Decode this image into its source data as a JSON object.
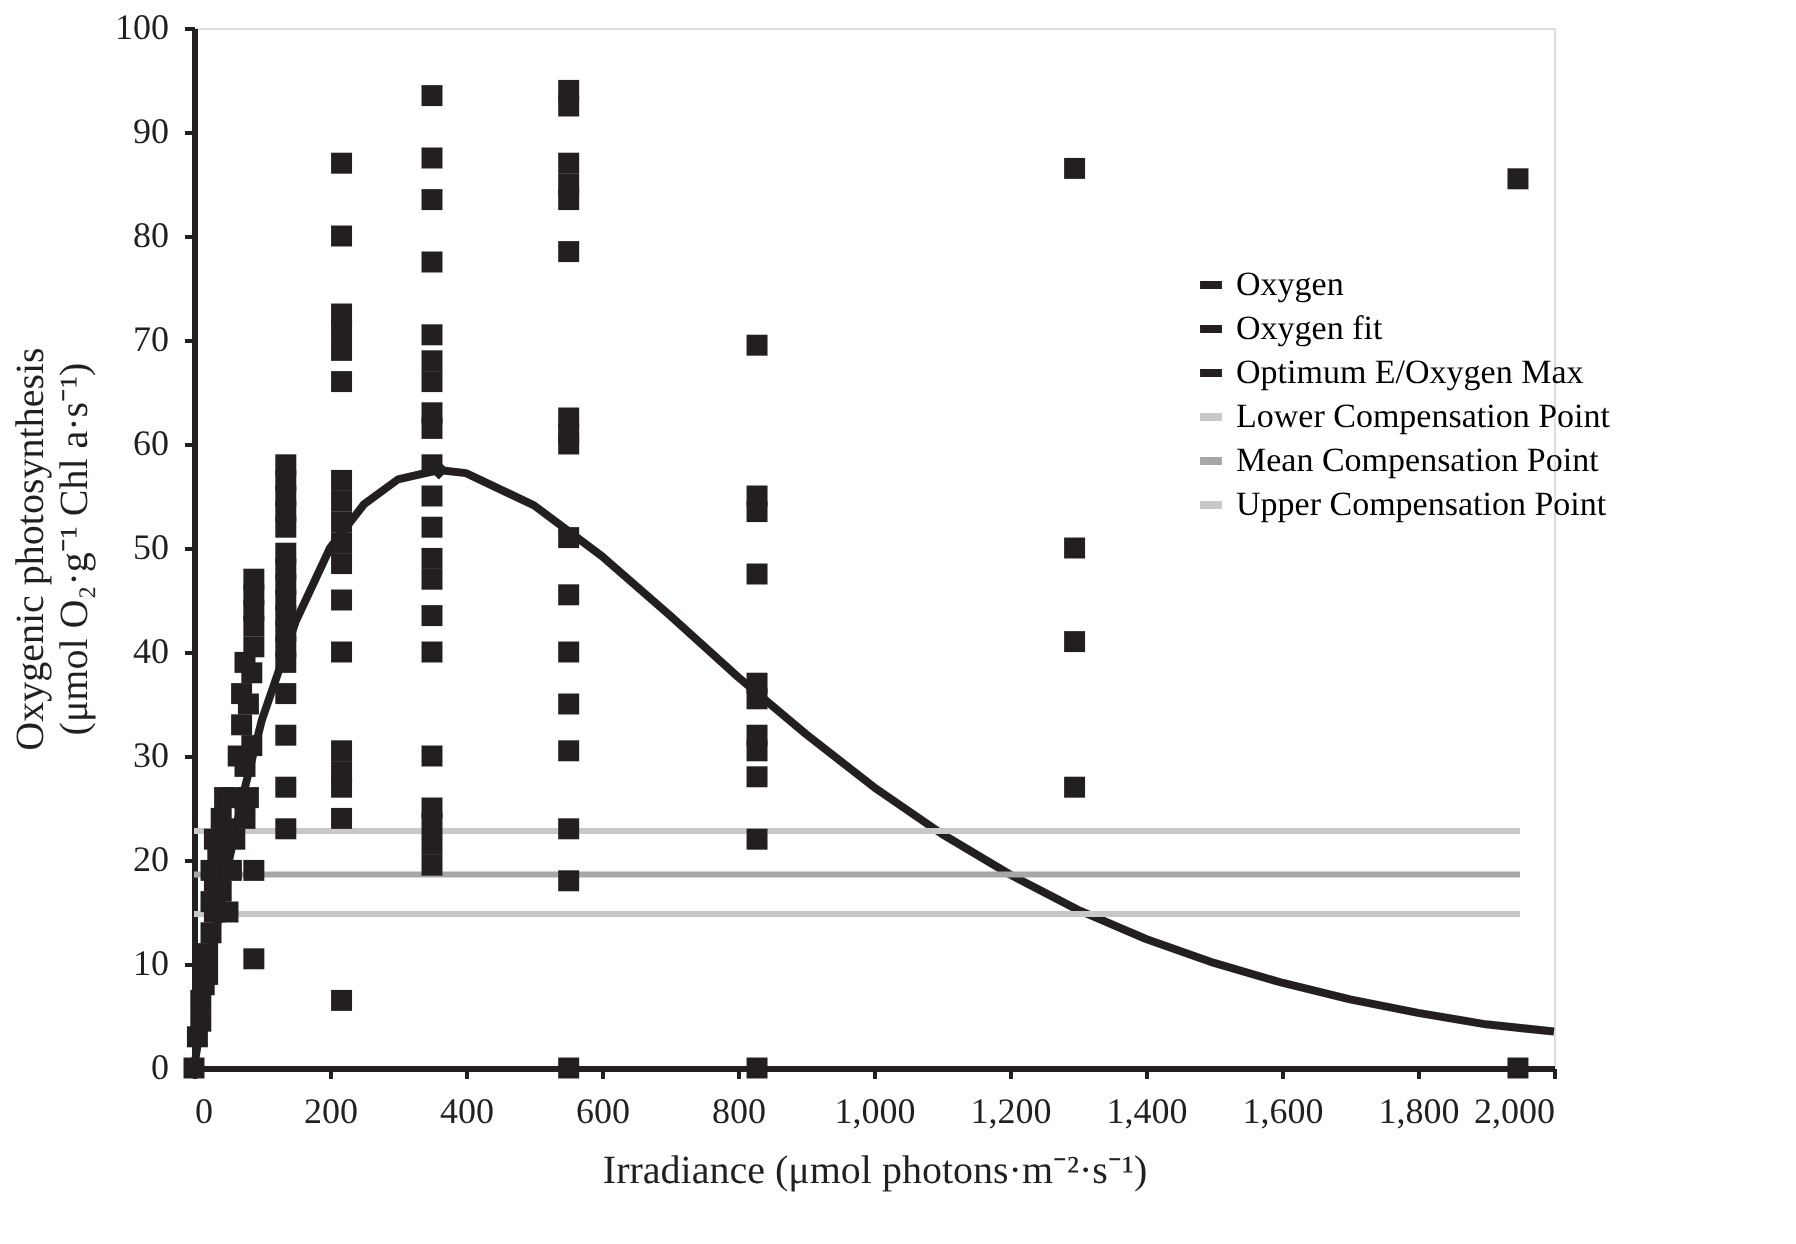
{
  "chart_data": {
    "type": "scatter",
    "xlabel": "Irradiance (μmol photons·m⁻²·s⁻¹)",
    "ylabel": "Oxygenic photosynthesis\n(μmol O₂·g⁻¹ Chl a·s⁻¹)",
    "xlim": [
      0,
      2000
    ],
    "xticks": [
      0,
      200,
      400,
      600,
      800,
      {
        "value": 1000,
        "label": "1,000"
      },
      {
        "value": 1200,
        "label": "1,200"
      },
      {
        "value": 1400,
        "label": "1,400"
      },
      {
        "value": 1600,
        "label": "1,600"
      },
      {
        "value": 1800,
        "label": "1,800"
      },
      {
        "value": 2000,
        "label": "2,000"
      }
    ],
    "ylim": [
      0,
      100
    ],
    "yticks": [
      0,
      10,
      20,
      30,
      40,
      50,
      60,
      70,
      80,
      90,
      100
    ],
    "grid": false,
    "legend": "right",
    "series": [
      {
        "name": "Oxygen",
        "marker": "square",
        "color": "#231f20",
        "x": [
          0,
          5,
          10,
          10,
          15,
          20,
          20,
          25,
          25,
          25,
          30,
          30,
          30,
          35,
          40,
          40,
          45,
          50,
          50,
          55,
          55,
          60,
          65,
          70,
          70,
          75,
          75,
          75,
          80,
          80,
          85,
          85,
          88,
          88,
          88,
          88,
          88,
          88,
          88,
          135,
          135,
          135,
          135,
          135,
          135,
          135,
          135,
          135,
          135,
          135,
          135,
          135,
          135,
          135,
          135,
          135,
          217,
          217,
          217,
          217,
          217,
          217,
          217,
          217,
          217,
          217,
          217,
          217,
          217,
          217,
          217,
          217,
          217,
          217,
          350,
          350,
          350,
          350,
          350,
          350,
          350,
          350,
          350,
          350,
          350,
          350,
          350,
          350,
          350,
          350,
          350,
          350,
          350,
          350,
          350,
          551,
          551,
          551,
          551,
          551,
          551,
          551,
          551,
          551,
          551,
          551,
          551,
          551,
          551,
          551,
          551,
          551,
          828,
          828,
          828,
          828,
          828,
          828,
          828,
          828,
          828,
          828,
          828,
          1295,
          1295,
          1295,
          1295,
          1947,
          1947
        ],
        "values": [
          0,
          3,
          6.5,
          4.5,
          8,
          11,
          9,
          13,
          16,
          19,
          15,
          18,
          22,
          21,
          24,
          17,
          26,
          23,
          15,
          26,
          19,
          22,
          30,
          33,
          36,
          29,
          39,
          24,
          35,
          26,
          31,
          38,
          47,
          45.5,
          44,
          42.5,
          40.5,
          19,
          10.5,
          58,
          56.5,
          55,
          53.5,
          52,
          49.5,
          48,
          46.5,
          45,
          43.5,
          42,
          40.5,
          39,
          36,
          32,
          27,
          23,
          87,
          80,
          72.5,
          71,
          69,
          66,
          56.5,
          54.5,
          52.5,
          50.5,
          48.5,
          45,
          40,
          30.5,
          28.5,
          27,
          24,
          6.5,
          93.5,
          87.5,
          83.5,
          77.5,
          70.5,
          68,
          66,
          63,
          61.5,
          58,
          55,
          52,
          49,
          47,
          43.5,
          40,
          30,
          25,
          23.5,
          21.5,
          19.5,
          94,
          92.5,
          87,
          85,
          83.5,
          78.5,
          62.5,
          61,
          60,
          51,
          45.5,
          40,
          35,
          30.5,
          23,
          18,
          0,
          69.5,
          55,
          53.5,
          47.5,
          37,
          35.5,
          32,
          30.5,
          28,
          22,
          0,
          86.5,
          50,
          41,
          27,
          85.5,
          0
        ]
      },
      {
        "name": "Oxygen fit",
        "type": "line",
        "line_style": "solid",
        "color": "#231f20",
        "x": [
          0,
          25,
          50,
          75,
          100,
          150,
          200,
          250,
          300,
          360,
          400,
          500,
          600,
          700,
          800,
          900,
          1000,
          1100,
          1200,
          1300,
          1400,
          1500,
          1600,
          1700,
          1800,
          1900,
          2000
        ],
        "values": [
          0,
          10.5,
          19.5,
          27,
          33.5,
          43,
          50,
          54.2,
          56.6,
          57.5,
          57.2,
          54.1,
          49.2,
          43.5,
          37.6,
          32.1,
          27,
          22.5,
          18.6,
          15.2,
          12.4,
          10.1,
          8.2,
          6.6,
          5.3,
          4.2,
          3.5
        ]
      },
      {
        "name": "Optimum E/Oxygen Max",
        "marker": "diamond",
        "color": "#231f20",
        "x": [
          360
        ],
        "values": [
          57.5
        ]
      },
      {
        "name": "Lower Compensation Point",
        "type": "line",
        "line_style": "solid",
        "color": "#c8c8c8",
        "x": [
          0,
          1950
        ],
        "values": [
          22.8,
          22.8
        ]
      },
      {
        "name": "Mean Compensation Point",
        "type": "line",
        "line_style": "solid",
        "color": "#a7a7a7",
        "x": [
          0,
          1950
        ],
        "values": [
          18.6,
          18.6
        ]
      },
      {
        "name": "Upper Compensation Point",
        "type": "line",
        "line_style": "solid",
        "color": "#c8c8c8",
        "x": [
          0,
          1950
        ],
        "values": [
          14.8,
          14.8
        ]
      }
    ]
  }
}
